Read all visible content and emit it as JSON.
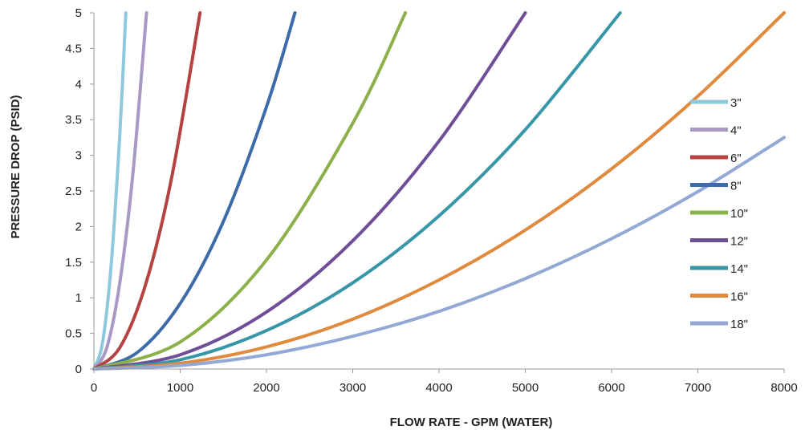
{
  "chart_data": {
    "type": "line",
    "title": "",
    "xlabel": "FLOW RATE - GPM (WATER)",
    "ylabel": "PRESSURE DROP (PSID)",
    "xlim": [
      0,
      8000
    ],
    "ylim": [
      0,
      5
    ],
    "x_ticks": [
      0,
      1000,
      2000,
      3000,
      4000,
      5000,
      6000,
      7000,
      8000
    ],
    "y_ticks": [
      0,
      0.5,
      1,
      1.5,
      2,
      2.5,
      3,
      3.5,
      4,
      4.5,
      5
    ],
    "grid": false,
    "legend_position": "right",
    "series": [
      {
        "name": "3\"",
        "color": "#8fc7dc",
        "x": [
          0,
          100,
          200,
          300,
          370
        ],
        "y": [
          0,
          0.37,
          1.46,
          3.29,
          5.0
        ]
      },
      {
        "name": "4\"",
        "color": "#a898c4",
        "x": [
          0,
          150,
          300,
          450,
          610
        ],
        "y": [
          0,
          0.3,
          1.21,
          2.72,
          5.0
        ]
      },
      {
        "name": "6\"",
        "color": "#b54141",
        "x": [
          0,
          300,
          600,
          900,
          1230
        ],
        "y": [
          0,
          0.3,
          1.19,
          2.68,
          5.0
        ]
      },
      {
        "name": "8\"",
        "color": "#3d6aa8",
        "x": [
          0,
          500,
          1000,
          1500,
          2000,
          2330
        ],
        "y": [
          0,
          0.23,
          0.92,
          2.07,
          3.68,
          5.0
        ]
      },
      {
        "name": "10\"",
        "color": "#8cb04a",
        "x": [
          0,
          1000,
          2000,
          3000,
          3610
        ],
        "y": [
          0,
          0.38,
          1.53,
          3.45,
          5.0
        ]
      },
      {
        "name": "12\"",
        "color": "#6f4e98",
        "x": [
          0,
          1000,
          2000,
          3000,
          4000,
          5000
        ],
        "y": [
          0,
          0.2,
          0.8,
          1.8,
          3.2,
          5.0
        ]
      },
      {
        "name": "14\"",
        "color": "#3796a8",
        "x": [
          0,
          1000,
          2000,
          3000,
          4000,
          5000,
          6100
        ],
        "y": [
          0,
          0.13,
          0.54,
          1.21,
          2.15,
          3.36,
          5.0
        ]
      },
      {
        "name": "16\"",
        "color": "#e08a3e",
        "x": [
          0,
          1000,
          2000,
          3000,
          4000,
          5000,
          6000,
          7000,
          8000
        ],
        "y": [
          0,
          0.08,
          0.31,
          0.7,
          1.25,
          1.95,
          2.81,
          3.83,
          5.0
        ]
      },
      {
        "name": "18\"",
        "color": "#94a8d6",
        "x": [
          0,
          1000,
          2000,
          3000,
          4000,
          5000,
          6000,
          7000,
          8000
        ],
        "y": [
          0,
          0.05,
          0.2,
          0.46,
          0.81,
          1.27,
          1.83,
          2.49,
          3.25
        ]
      }
    ]
  }
}
